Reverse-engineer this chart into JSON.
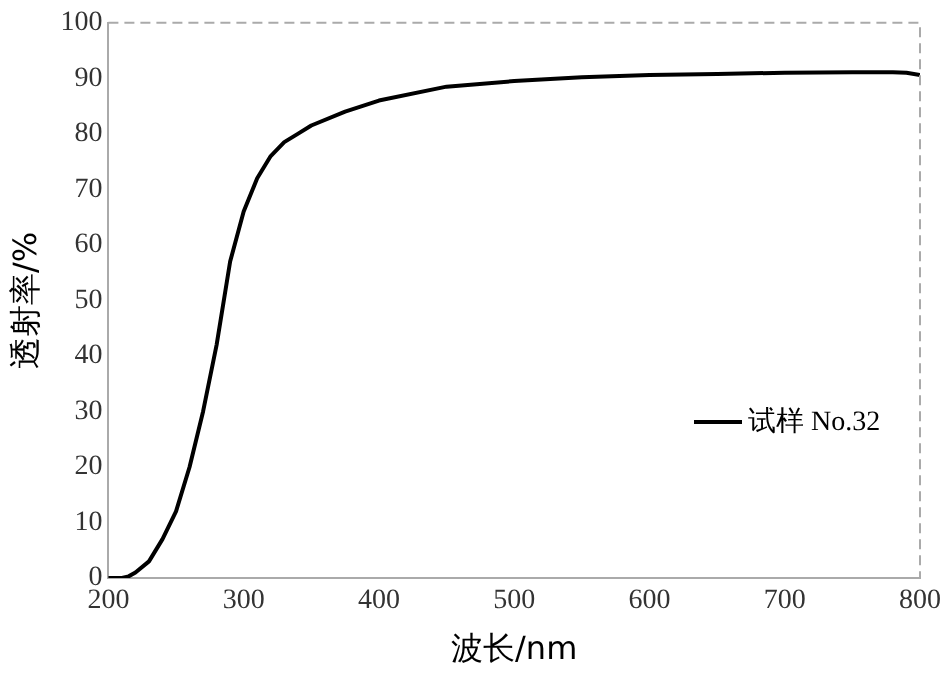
{
  "chart_data": {
    "type": "line",
    "xlabel": "波长/nm",
    "ylabel": "透射率/%",
    "xlim": [
      200,
      800
    ],
    "xticks": [
      200,
      300,
      400,
      500,
      600,
      700,
      800
    ],
    "ylim": [
      0,
      100
    ],
    "yticks": [
      0,
      10,
      20,
      30,
      40,
      50,
      60,
      70,
      80,
      90,
      100
    ],
    "grid": false,
    "legend": "right",
    "marker": "none",
    "line_style": "solid",
    "series": [
      {
        "name": "试样 No.32",
        "color": "#000000",
        "x": [
          200,
          210,
          215,
          220,
          230,
          240,
          250,
          260,
          270,
          280,
          290,
          300,
          310,
          320,
          330,
          340,
          350,
          375,
          400,
          450,
          500,
          550,
          600,
          650,
          700,
          750,
          780,
          790,
          800
        ],
        "values": [
          0,
          0,
          0.3,
          1,
          3,
          7,
          12,
          20,
          30,
          42,
          57,
          66,
          72,
          76,
          78.5,
          80,
          81.5,
          84,
          86,
          88.5,
          89.5,
          90.2,
          90.6,
          90.8,
          91,
          91.1,
          91.1,
          91,
          90.6
        ]
      }
    ]
  }
}
